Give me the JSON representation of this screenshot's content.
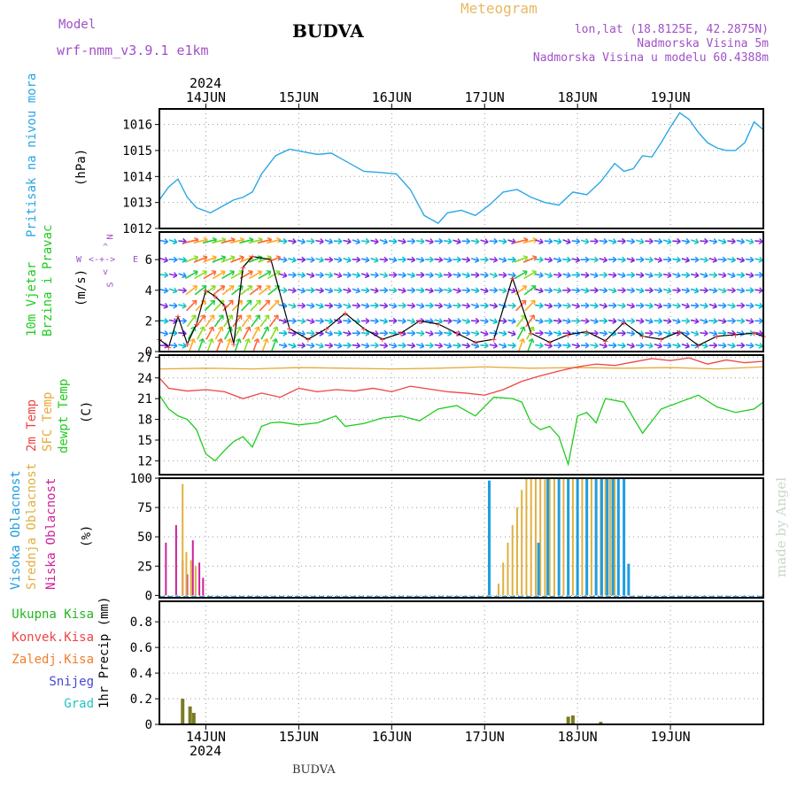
{
  "header": {
    "model_label": "Model",
    "model_name": "wrf-nmm_v3.9.1 e1km",
    "station": "BUDVA",
    "chart_kind": "Meteogram",
    "lonlat": "lon,lat (18.8125E, 42.2875N)",
    "elevation": "Nadmorska Visina 5m",
    "model_elevation": "Nadmorska Visina u modelu 60.4388m",
    "year_top": "2024",
    "year_bottom": "2024",
    "footer_station": "BUDVA",
    "credit": "made by Angel"
  },
  "colors": {
    "pressure": "#2aa7e6",
    "temp2m": "#ee4444",
    "sfc": "#e8a838",
    "dewpt": "#1fcc1f",
    "high_cloud": "#1e9de0",
    "mid_cloud": "#e0b040",
    "low_cloud": "#cc2299",
    "precip": "#7b7b22",
    "label_purple": "#a050c8",
    "label_orange": "#e8b860"
  },
  "chart_data": [
    {
      "type": "line",
      "name": "pressure",
      "ylabel_left": "Pritisak na nivou mora",
      "ylabel_unit": "(hPa)",
      "ylim": [
        1012,
        1016.6
      ],
      "yticks": [
        "1012",
        "1013",
        "1014",
        "1015",
        "1016"
      ],
      "series": [
        {
          "key": "pressure",
          "x": [
            0,
            0.1,
            0.2,
            0.3,
            0.4,
            0.55,
            0.7,
            0.8,
            0.9,
            1.0,
            1.1,
            1.25,
            1.4,
            1.55,
            1.7,
            1.85,
            2.0,
            2.2,
            2.4,
            2.55,
            2.7,
            2.85,
            3.0,
            3.1,
            3.25,
            3.4,
            3.55,
            3.7,
            3.85,
            4.0,
            4.15,
            4.3,
            4.45,
            4.6,
            4.75,
            4.9,
            5.0,
            5.1,
            5.2,
            5.3,
            5.4,
            5.5,
            5.6,
            5.7,
            5.8,
            5.9,
            6.0,
            6.1,
            6.2,
            6.3,
            6.4,
            6.5
          ],
          "values": [
            1013.1,
            1013.6,
            1013.9,
            1013.2,
            1012.8,
            1012.6,
            1012.9,
            1013.1,
            1013.2,
            1013.4,
            1014.1,
            1014.8,
            1015.05,
            1014.95,
            1014.85,
            1014.9,
            1014.6,
            1014.2,
            1014.15,
            1014.1,
            1013.5,
            1012.5,
            1012.2,
            1012.6,
            1012.7,
            1012.5,
            1012.9,
            1013.4,
            1013.5,
            1013.2,
            1013.0,
            1012.9,
            1013.4,
            1013.3,
            1013.8,
            1014.5,
            1014.2,
            1014.3,
            1014.8,
            1014.75,
            1015.3,
            1015.9,
            1016.45,
            1016.2,
            1015.7,
            1015.3,
            1015.1,
            1015.0,
            1015.0,
            1015.3,
            1016.1,
            1015.8
          ]
        }
      ]
    },
    {
      "type": "line",
      "name": "wind",
      "ylabel_left": "10m Vjetar Brzina i Pravac",
      "ylabel_unit": "(m/s)",
      "compass": {
        "n": "N",
        "e": "E",
        "s": "S",
        "w": "W"
      },
      "ylim": [
        0,
        7.8
      ],
      "yticks": [
        "0",
        "2",
        "4",
        "6"
      ],
      "series": [
        {
          "key": "wind_speed",
          "x": [
            0,
            0.1,
            0.2,
            0.3,
            0.4,
            0.5,
            0.6,
            0.7,
            0.8,
            0.9,
            1.0,
            1.2,
            1.4,
            1.6,
            1.8,
            2.0,
            2.2,
            2.4,
            2.6,
            2.8,
            3.0,
            3.2,
            3.4,
            3.6,
            3.8,
            4.0,
            4.2,
            4.4,
            4.6,
            4.8,
            5.0,
            5.2,
            5.4,
            5.6,
            5.8,
            6.0,
            6.2,
            6.4,
            6.5
          ],
          "values": [
            0.8,
            0.3,
            2.3,
            0.5,
            1.8,
            4.0,
            3.6,
            3.0,
            0.5,
            5.5,
            6.2,
            6.0,
            1.5,
            0.8,
            1.5,
            2.5,
            1.5,
            0.8,
            1.2,
            2.0,
            1.8,
            1.2,
            0.6,
            0.8,
            4.8,
            1.2,
            0.6,
            1.1,
            1.3,
            0.7,
            1.9,
            1.0,
            0.8,
            1.3,
            0.4,
            1.0,
            1.1,
            1.2,
            1.0
          ]
        }
      ]
    },
    {
      "type": "line",
      "name": "temperature",
      "ylabel_left": [
        "2m Temp",
        "SFC Temp",
        "dewpt Temp"
      ],
      "ylabel_unit": "(C)",
      "ylim": [
        10,
        27.3
      ],
      "yticks": [
        "12",
        "15",
        "18",
        "21",
        "24",
        "27"
      ],
      "series": [
        {
          "key": "sfc",
          "name": "SFC Temp",
          "x": [
            0,
            0.5,
            1.0,
            1.5,
            2.0,
            2.5,
            3.0,
            3.5,
            4.0,
            4.5,
            5.0,
            5.5,
            6.0,
            6.5
          ],
          "values": [
            25.3,
            25.4,
            25.3,
            25.5,
            25.4,
            25.3,
            25.4,
            25.6,
            25.4,
            25.5,
            25.4,
            25.5,
            25.3,
            25.6
          ]
        },
        {
          "key": "temp2m",
          "name": "2m Temp",
          "x": [
            0,
            0.1,
            0.3,
            0.5,
            0.7,
            0.9,
            1.1,
            1.3,
            1.5,
            1.7,
            1.9,
            2.1,
            2.3,
            2.5,
            2.7,
            2.9,
            3.1,
            3.3,
            3.5,
            3.7,
            3.9,
            4.1,
            4.3,
            4.5,
            4.7,
            4.9,
            5.1,
            5.3,
            5.5,
            5.7,
            5.9,
            6.1,
            6.3,
            6.5
          ],
          "values": [
            24.0,
            22.5,
            22.1,
            22.3,
            22.0,
            21.0,
            21.8,
            21.2,
            22.5,
            22.0,
            22.3,
            22.1,
            22.5,
            22.0,
            22.8,
            22.4,
            22.0,
            21.8,
            21.5,
            22.3,
            23.5,
            24.3,
            25.0,
            25.6,
            26.0,
            25.8,
            26.3,
            26.8,
            26.5,
            26.9,
            26.0,
            26.6,
            26.2,
            26.4
          ]
        },
        {
          "key": "dewpt",
          "name": "dewpt Temp",
          "x": [
            0,
            0.1,
            0.2,
            0.3,
            0.4,
            0.5,
            0.6,
            0.7,
            0.8,
            0.9,
            1.0,
            1.1,
            1.2,
            1.3,
            1.5,
            1.7,
            1.9,
            2.0,
            2.2,
            2.4,
            2.6,
            2.8,
            3.0,
            3.2,
            3.4,
            3.6,
            3.8,
            3.9,
            4.0,
            4.1,
            4.2,
            4.3,
            4.4,
            4.5,
            4.6,
            4.7,
            4.8,
            5.0,
            5.2,
            5.4,
            5.6,
            5.8,
            6.0,
            6.2,
            6.4,
            6.5
          ],
          "values": [
            21.5,
            19.5,
            18.5,
            18.0,
            16.5,
            13.0,
            12.0,
            13.5,
            14.8,
            15.5,
            14.0,
            17.0,
            17.5,
            17.6,
            17.2,
            17.5,
            18.5,
            17.0,
            17.4,
            18.2,
            18.5,
            17.8,
            19.5,
            20.0,
            18.5,
            21.2,
            21.0,
            20.5,
            17.5,
            16.5,
            17.0,
            15.5,
            11.5,
            18.5,
            19.0,
            17.5,
            21.0,
            20.5,
            16.0,
            19.5,
            20.5,
            21.5,
            19.8,
            19.0,
            19.5,
            20.5
          ]
        }
      ]
    },
    {
      "type": "bar",
      "name": "cloud",
      "ylabel_left": [
        "Visoka Oblacnost",
        "Srednja Oblacnost",
        "Niska Oblacnost"
      ],
      "ylabel_unit": "(%)",
      "ylim": [
        -2,
        100
      ],
      "yticks": [
        "0",
        "25",
        "50",
        "75",
        "100"
      ],
      "series": [
        {
          "key": "low_cloud",
          "name": "Niska Oblacnost",
          "x": [
            0.07,
            0.18,
            0.25,
            0.3,
            0.36,
            0.43,
            0.47
          ],
          "values": [
            45,
            60,
            30,
            18,
            47,
            28,
            15
          ]
        },
        {
          "key": "mid_cloud",
          "name": "Srednja Oblacnost",
          "x": [
            0.25,
            0.29,
            0.34,
            0.39,
            3.65,
            3.7,
            3.75,
            3.8,
            3.85,
            3.9,
            3.95,
            4.0,
            4.05,
            4.1,
            4.15,
            4.2,
            4.25,
            4.3,
            4.35,
            4.4,
            4.45,
            4.5,
            4.55,
            4.6,
            4.65,
            4.7,
            4.75,
            4.8,
            4.85,
            4.9
          ],
          "values": [
            95,
            37,
            30,
            25,
            10,
            28,
            45,
            60,
            75,
            90,
            100,
            100,
            100,
            100,
            99,
            100,
            100,
            100,
            100,
            100,
            100,
            100,
            100,
            100,
            100,
            100,
            100,
            100,
            100,
            100
          ]
        },
        {
          "key": "high_cloud",
          "name": "Visoka Oblacnost",
          "x": [
            3.55,
            4.08,
            4.18,
            4.3,
            4.4,
            4.5,
            4.6,
            4.7,
            4.76,
            4.82,
            4.88,
            4.94,
            5.0,
            5.05
          ],
          "values": [
            98,
            45,
            100,
            100,
            100,
            100,
            100,
            100,
            100,
            100,
            100,
            100,
            100,
            27
          ]
        }
      ]
    },
    {
      "type": "bar",
      "name": "precip",
      "legend": [
        "Ukupna Kisa",
        "Konvek.Kisa",
        "Zaledj.Kisa",
        "Snijeg",
        "Grad"
      ],
      "legend_colors": [
        "#22b622",
        "#ee4444",
        "#f07d2a",
        "#4646d8",
        "#22c2c2"
      ],
      "ylabel_unit": "1hr Precip (mm)",
      "ylim": [
        0,
        0.96
      ],
      "yticks": [
        "0",
        "0.2",
        "0.4",
        "0.6",
        "0.8"
      ],
      "series": [
        {
          "key": "precip",
          "name": "Ukupna Kisa",
          "x": [
            0.25,
            0.33,
            0.37,
            4.4,
            4.45,
            4.75
          ],
          "values": [
            0.2,
            0.14,
            0.09,
            0.06,
            0.07,
            0.02
          ]
        }
      ]
    }
  ],
  "x_axis": {
    "days": [
      "14JUN",
      "15JUN",
      "16JUN",
      "17JUN",
      "18JUN",
      "19JUN"
    ],
    "day_positions": [
      0.5,
      1.5,
      2.5,
      3.5,
      4.5,
      5.5
    ]
  }
}
